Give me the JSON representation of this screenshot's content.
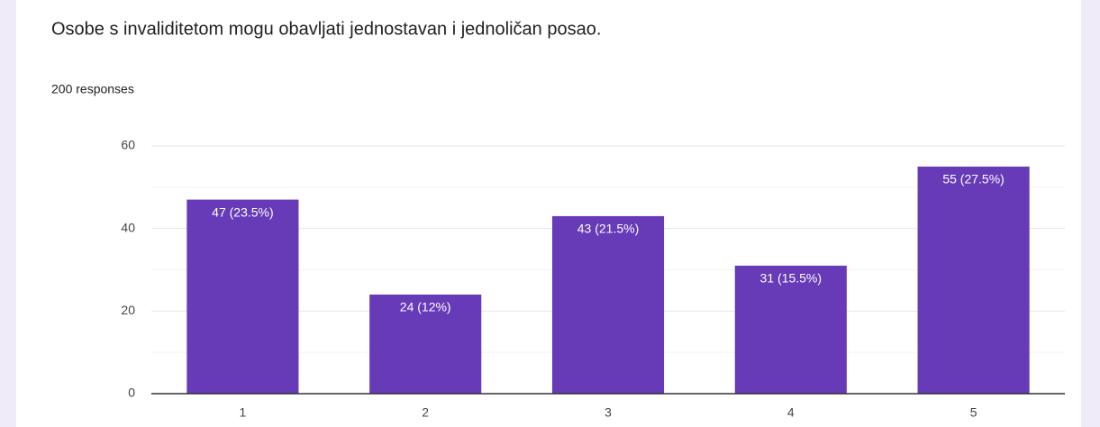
{
  "chart_data": {
    "type": "bar",
    "title": "Osobe s invaliditetom mogu obavljati jednostavan i jednoličan posao.",
    "subtitle": "200 responses",
    "categories": [
      "1",
      "2",
      "3",
      "4",
      "5"
    ],
    "values": [
      47,
      24,
      43,
      31,
      55
    ],
    "value_labels": [
      "47 (23.5%)",
      "24 (12%)",
      "43 (21.5%)",
      "31 (15.5%)",
      "55 (27.5%)"
    ],
    "color": "#673ab7",
    "ylim": [
      0,
      60
    ],
    "yticks": [
      0,
      20,
      40,
      60
    ],
    "minor_yticks": [
      10,
      30,
      50
    ],
    "grid": true
  }
}
